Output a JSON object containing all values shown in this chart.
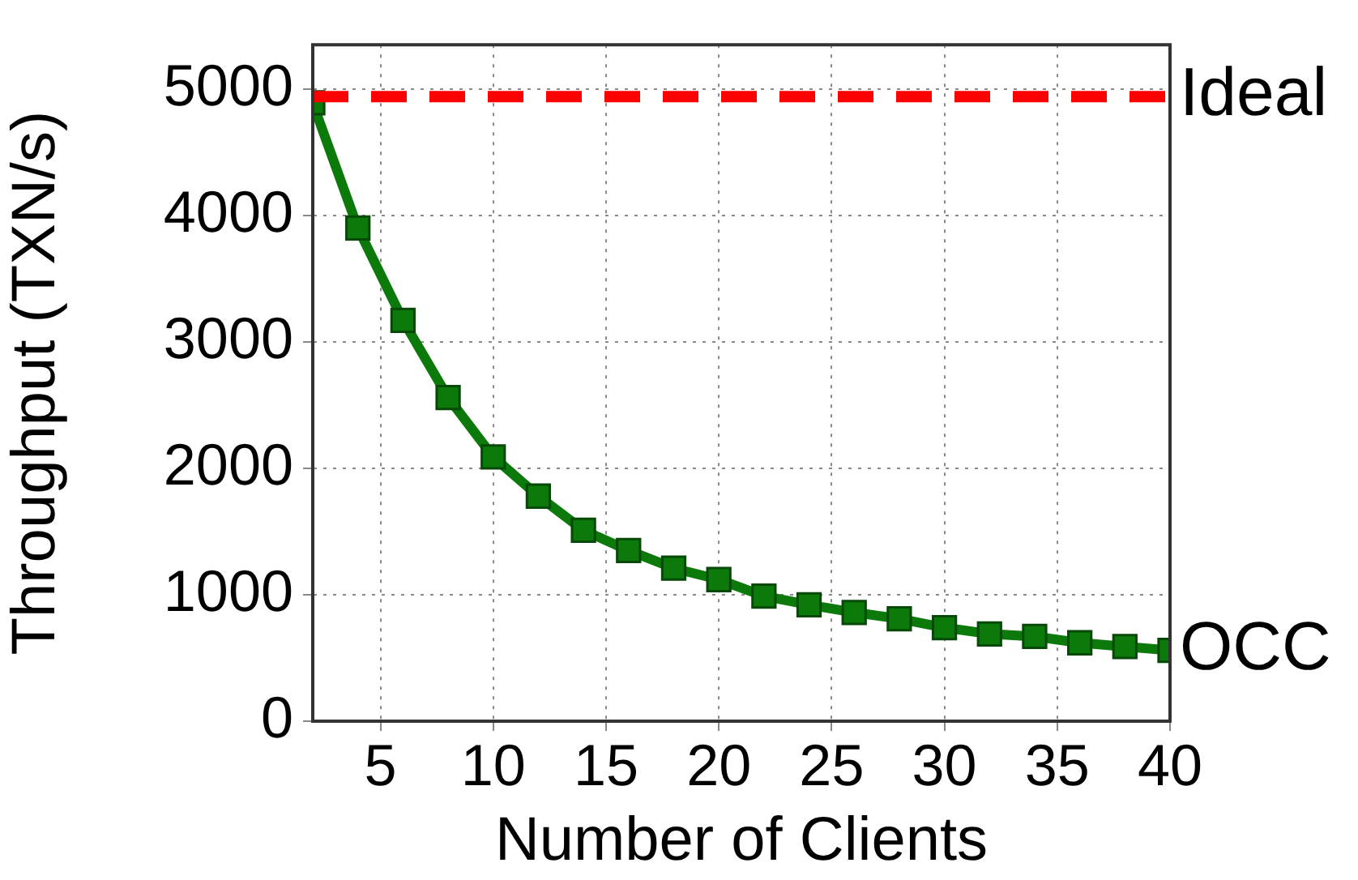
{
  "chart_data": {
    "type": "line",
    "xlabel": "Number of Clients",
    "ylabel": "Throughput (TXN/s)",
    "x": [
      2,
      4,
      6,
      8,
      10,
      12,
      14,
      16,
      18,
      20,
      22,
      24,
      26,
      28,
      30,
      32,
      34,
      36,
      38,
      40
    ],
    "series": [
      {
        "name": "OCC",
        "color": "#0b7a0b",
        "values": [
          4890,
          3900,
          3170,
          2560,
          2090,
          1780,
          1510,
          1350,
          1210,
          1120,
          990,
          920,
          860,
          810,
          740,
          690,
          670,
          620,
          590,
          560
        ]
      }
    ],
    "ref_lines": [
      {
        "axis": "y",
        "value": 4940,
        "label": "Ideal",
        "color": "#ff0000",
        "line_style": "dashed"
      }
    ],
    "xlim": [
      2,
      40
    ],
    "xticks": [
      5,
      10,
      15,
      20,
      25,
      30,
      35,
      40
    ],
    "ylim": [
      0,
      5350
    ],
    "yticks": [
      0,
      1000,
      2000,
      3000,
      4000,
      5000
    ],
    "grid": true,
    "marker": "square",
    "line_style": "solid",
    "legend": false
  }
}
